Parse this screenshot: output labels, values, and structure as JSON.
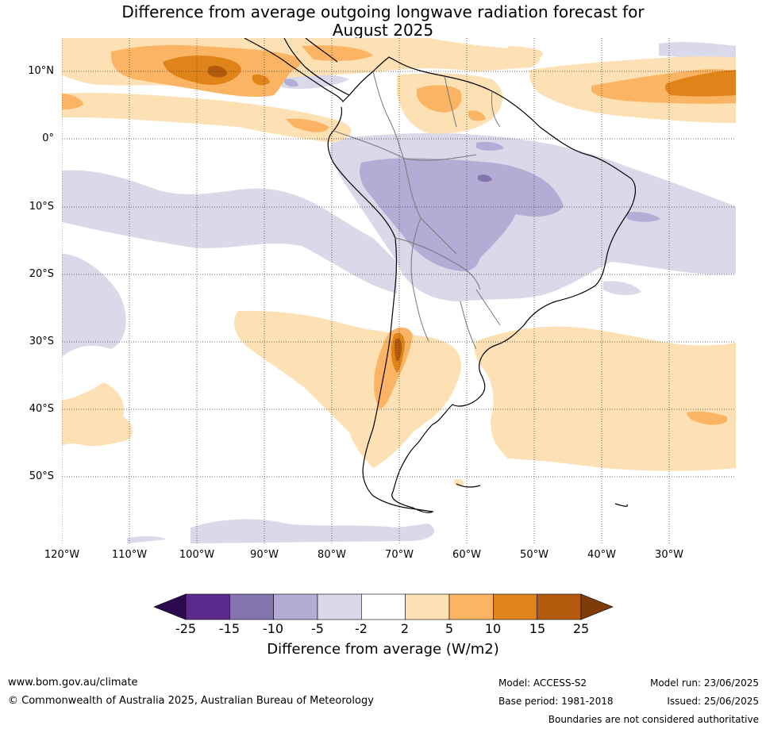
{
  "title_line1": "Difference from average outgoing longwave radiation forecast for",
  "title_line2": "August 2025",
  "latitudes": [
    "10°N",
    "0°",
    "10°S",
    "20°S",
    "30°S",
    "40°S",
    "50°S"
  ],
  "longitudes": [
    "120°W",
    "110°W",
    "100°W",
    "90°W",
    "80°W",
    "70°W",
    "60°W",
    "50°W",
    "40°W",
    "30°W"
  ],
  "colorbar": {
    "ticks": [
      "-25",
      "-15",
      "-10",
      "-5",
      "-2",
      "2",
      "5",
      "10",
      "15",
      "25"
    ],
    "label": "Difference from average (W/m2)",
    "colors": [
      "#2d0a4f",
      "#5b2a8c",
      "#8575ae",
      "#b3acd4",
      "#d9d9ea",
      "#ffffff",
      "#fde0b3",
      "#fbb463",
      "#e08419",
      "#b45a0c",
      "#7f3b08"
    ]
  },
  "footer": {
    "website": "www.bom.gov.au/climate",
    "copyright": "© Commonwealth of Australia 2025, Australian Bureau of Meteorology",
    "model": "Model: ACCESS-S2",
    "base_period": "Base period: 1981-2018",
    "model_run": "Model run: 23/06/2025",
    "issued": "Issued: 25/06/2025",
    "disclaimer": "Boundaries are not considered authoritative"
  }
}
